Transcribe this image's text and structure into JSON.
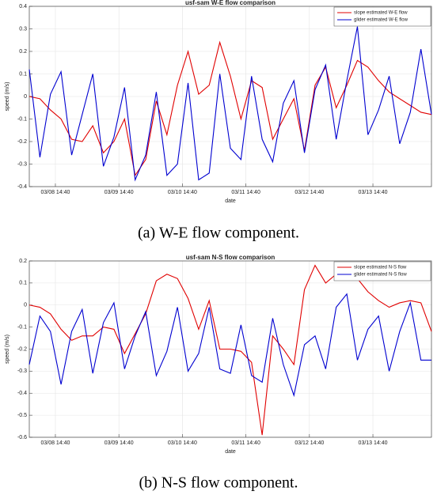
{
  "chart_data": [
    {
      "type": "line",
      "title": "usf-sam W-E flow comparison",
      "x_label": "date",
      "y_label": "speed (m/s)",
      "caption": "(a) W-E flow component.",
      "x": [
        8.2,
        8.367,
        8.533,
        8.7,
        8.867,
        9.033,
        9.2,
        9.367,
        9.533,
        9.7,
        9.867,
        10.033,
        10.2,
        10.367,
        10.533,
        10.7,
        10.867,
        11.033,
        11.2,
        11.367,
        11.533,
        11.7,
        11.867,
        12.033,
        12.2,
        12.367,
        12.533,
        12.7,
        12.867,
        13.033,
        13.2,
        13.367,
        13.533,
        13.7,
        13.867,
        14.033,
        14.2,
        14.367,
        14.533
      ],
      "series": [
        {
          "name": "slope estimated W-E flow",
          "color": "#e00000",
          "values": [
            0,
            -0.01,
            -0.06,
            -0.1,
            -0.19,
            -0.2,
            -0.13,
            -0.25,
            -0.2,
            -0.1,
            -0.35,
            -0.28,
            -0.02,
            -0.17,
            0.05,
            0.2,
            0.01,
            0.05,
            0.24,
            0.09,
            -0.1,
            0.07,
            0.04,
            -0.19,
            -0.1,
            -0.01,
            -0.24,
            0.05,
            0.13,
            -0.05,
            0.05,
            0.16,
            0.13,
            0.07,
            0.02,
            -0.01,
            -0.04,
            -0.07,
            -0.08
          ]
        },
        {
          "name": "glider estimated W-E flow",
          "color": "#0000d0",
          "values": [
            0.12,
            -0.27,
            0.01,
            0.11,
            -0.26,
            -0.08,
            0.1,
            -0.31,
            -0.18,
            0.04,
            -0.37,
            -0.26,
            0.02,
            -0.35,
            -0.3,
            0.06,
            -0.37,
            -0.34,
            0.1,
            -0.23,
            -0.28,
            0.09,
            -0.19,
            -0.29,
            -0.03,
            0.07,
            -0.25,
            0.03,
            0.14,
            -0.19,
            0.07,
            0.31,
            -0.17,
            -0.06,
            0.09,
            -0.21,
            -0.07,
            0.21,
            -0.08
          ]
        }
      ],
      "xlim": [
        8.2,
        14.533
      ],
      "xticks": [
        {
          "value": 8.611,
          "label": "03/08 14:40"
        },
        {
          "value": 9.611,
          "label": "03/09 14:40"
        },
        {
          "value": 10.611,
          "label": "03/10 14:40"
        },
        {
          "value": 11.611,
          "label": "03/11 14:40"
        },
        {
          "value": 12.611,
          "label": "03/12 14:40"
        },
        {
          "value": 13.611,
          "label": "03/13 14:40"
        }
      ],
      "ylim": [
        -0.4,
        0.4
      ],
      "yticks": [
        -0.4,
        -0.3,
        -0.2,
        -0.1,
        0,
        0.1,
        0.2,
        0.3,
        0.4
      ],
      "grid": true,
      "legend": "upper right"
    },
    {
      "type": "line",
      "title": "usf-sam N-S flow comparison",
      "x_label": "date",
      "y_label": "speed (m/s)",
      "caption": "(b) N-S flow component.",
      "x": [
        8.2,
        8.367,
        8.533,
        8.7,
        8.867,
        9.033,
        9.2,
        9.367,
        9.533,
        9.7,
        9.867,
        10.033,
        10.2,
        10.367,
        10.533,
        10.7,
        10.867,
        11.033,
        11.2,
        11.367,
        11.533,
        11.7,
        11.867,
        12.033,
        12.2,
        12.367,
        12.533,
        12.7,
        12.867,
        13.033,
        13.2,
        13.367,
        13.533,
        13.7,
        13.867,
        14.033,
        14.2,
        14.367,
        14.533
      ],
      "series": [
        {
          "name": "slope estimated N-S flow",
          "color": "#e00000",
          "values": [
            0,
            -0.01,
            -0.04,
            -0.11,
            -0.16,
            -0.14,
            -0.14,
            -0.1,
            -0.11,
            -0.22,
            -0.13,
            -0.04,
            0.11,
            0.14,
            0.12,
            0.03,
            -0.11,
            0.02,
            -0.2,
            -0.2,
            -0.21,
            -0.26,
            -0.59,
            -0.14,
            -0.2,
            -0.27,
            0.07,
            0.18,
            0.1,
            0.14,
            0.16,
            0.12,
            0.06,
            0.02,
            -0.01,
            0.01,
            0.02,
            0.01,
            -0.12
          ]
        },
        {
          "name": "glider estimated N-S flow",
          "color": "#0000d0",
          "values": [
            -0.27,
            -0.05,
            -0.12,
            -0.36,
            -0.12,
            -0.02,
            -0.31,
            -0.08,
            0.01,
            -0.29,
            -0.14,
            -0.03,
            -0.32,
            -0.21,
            -0.01,
            -0.3,
            -0.22,
            -0.01,
            -0.29,
            -0.31,
            -0.09,
            -0.32,
            -0.35,
            -0.06,
            -0.27,
            -0.41,
            -0.18,
            -0.14,
            -0.29,
            -0.01,
            0.05,
            -0.25,
            -0.11,
            -0.05,
            -0.3,
            -0.12,
            0.01,
            -0.25,
            -0.25
          ]
        }
      ],
      "xlim": [
        8.2,
        14.533
      ],
      "xticks": [
        {
          "value": 8.611,
          "label": "03/08 14:40"
        },
        {
          "value": 9.611,
          "label": "03/09 14:40"
        },
        {
          "value": 10.611,
          "label": "03/10 14:40"
        },
        {
          "value": 11.611,
          "label": "03/11 14:40"
        },
        {
          "value": 12.611,
          "label": "03/12 14:40"
        },
        {
          "value": 13.611,
          "label": "03/13 14:40"
        }
      ],
      "ylim": [
        -0.6,
        0.2
      ],
      "yticks": [
        -0.6,
        -0.5,
        -0.4,
        -0.3,
        -0.2,
        -0.1,
        0,
        0.1,
        0.2
      ],
      "grid": true,
      "legend": "upper right"
    }
  ]
}
